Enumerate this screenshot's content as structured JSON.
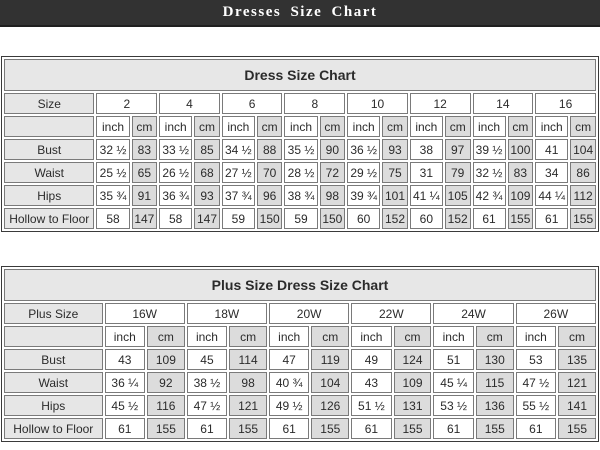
{
  "page_header": {
    "title": "Dresses Size Chart"
  },
  "units": {
    "inch": "inch",
    "cm": "cm"
  },
  "colors": {
    "top_bar_bg": "#323232",
    "top_bar_text": "#ffffff",
    "title_row_bg": "#e7e7e7",
    "label_col_bg": "#e6e6e6",
    "cm_col_bg": "#dcdcdc",
    "inch_col_bg": "#ffffff",
    "cell_border": "#7a7a7a",
    "outer_border": "#3a3a3a"
  },
  "chart_data": [
    {
      "type": "table",
      "title": "Dress Size Chart",
      "size_label": "Size",
      "sizes": [
        "2",
        "4",
        "6",
        "8",
        "10",
        "12",
        "14",
        "16"
      ],
      "unit_columns_per_size": [
        "inch",
        "cm"
      ],
      "rows": [
        {
          "label": "Bust",
          "values": [
            "32 ½",
            "83",
            "33 ½",
            "85",
            "34 ½",
            "88",
            "35 ½",
            "90",
            "36 ½",
            "93",
            "38",
            "97",
            "39 ½",
            "100",
            "41",
            "104"
          ]
        },
        {
          "label": "Waist",
          "values": [
            "25 ½",
            "65",
            "26 ½",
            "68",
            "27 ½",
            "70",
            "28 ½",
            "72",
            "29 ½",
            "75",
            "31",
            "79",
            "32 ½",
            "83",
            "34",
            "86"
          ]
        },
        {
          "label": "Hips",
          "values": [
            "35 ¾",
            "91",
            "36 ¾",
            "93",
            "37 ¾",
            "96",
            "38 ¾",
            "98",
            "39 ¾",
            "101",
            "41 ¼",
            "105",
            "42 ¾",
            "109",
            "44 ¼",
            "112"
          ]
        },
        {
          "label": "Hollow to Floor",
          "values": [
            "58",
            "147",
            "58",
            "147",
            "59",
            "150",
            "59",
            "150",
            "60",
            "152",
            "60",
            "152",
            "61",
            "155",
            "61",
            "155"
          ]
        }
      ]
    },
    {
      "type": "table",
      "title": "Plus Size Dress Size Chart",
      "size_label": "Plus Size",
      "sizes": [
        "16W",
        "18W",
        "20W",
        "22W",
        "24W",
        "26W"
      ],
      "unit_columns_per_size": [
        "inch",
        "cm"
      ],
      "rows": [
        {
          "label": "Bust",
          "values": [
            "43",
            "109",
            "45",
            "114",
            "47",
            "119",
            "49",
            "124",
            "51",
            "130",
            "53",
            "135"
          ]
        },
        {
          "label": "Waist",
          "values": [
            "36 ¼",
            "92",
            "38 ½",
            "98",
            "40 ¾",
            "104",
            "43",
            "109",
            "45 ¼",
            "115",
            "47 ½",
            "121"
          ]
        },
        {
          "label": "Hips",
          "values": [
            "45 ½",
            "116",
            "47 ½",
            "121",
            "49 ½",
            "126",
            "51 ½",
            "131",
            "53 ½",
            "136",
            "55 ½",
            "141"
          ]
        },
        {
          "label": "Hollow to Floor",
          "values": [
            "61",
            "155",
            "61",
            "155",
            "61",
            "155",
            "61",
            "155",
            "61",
            "155",
            "61",
            "155"
          ]
        }
      ]
    }
  ]
}
